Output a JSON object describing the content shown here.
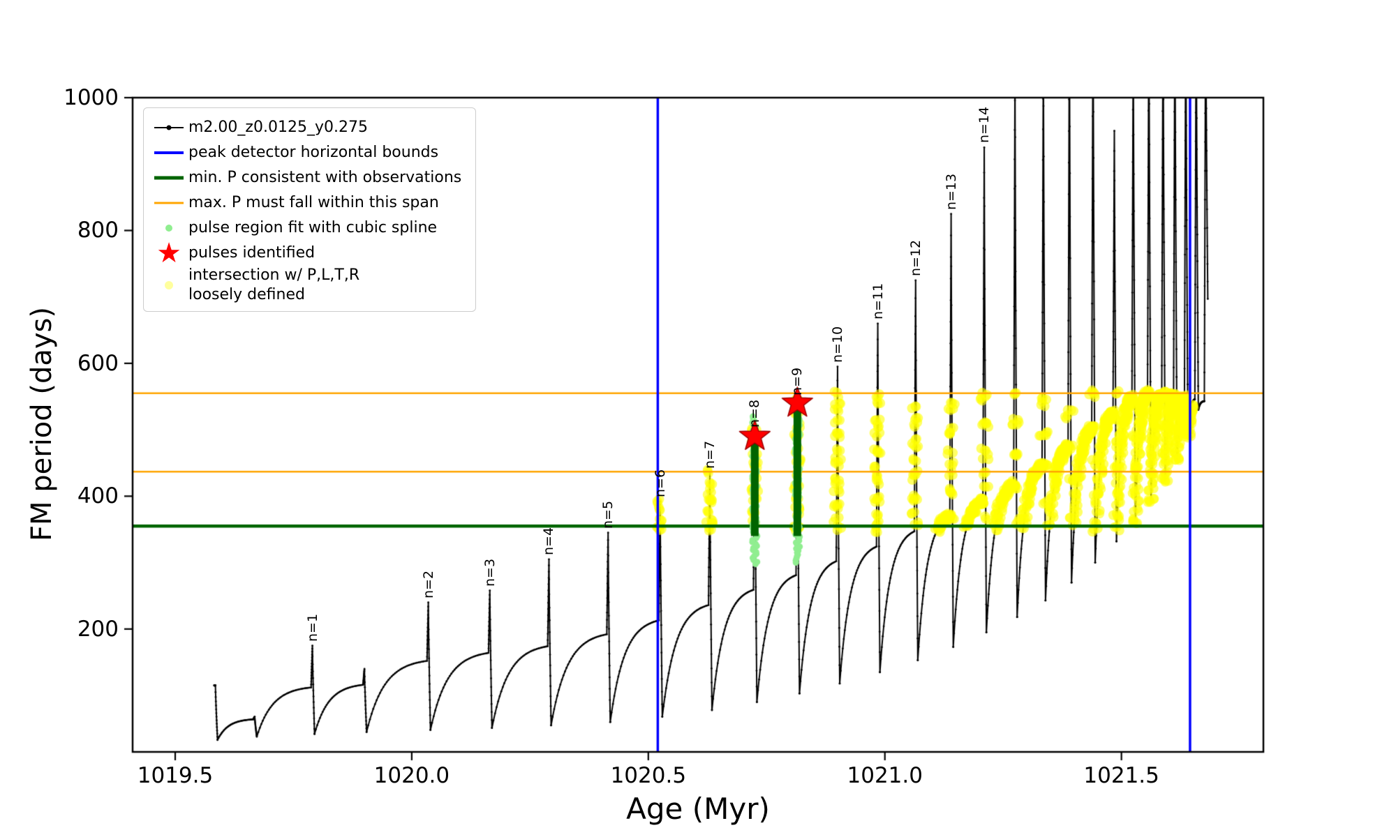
{
  "chart_data": {
    "type": "line",
    "title": "",
    "xlabel": "Age (Myr)",
    "ylabel": "FM period (days)",
    "xlim": [
      1019.41,
      1021.8
    ],
    "ylim": [
      15,
      1000
    ],
    "grid": false,
    "legend_position": "upper left",
    "xticks": [
      {
        "v": 1019.5,
        "label": "1019.5"
      },
      {
        "v": 1020.0,
        "label": "1020.0"
      },
      {
        "v": 1020.5,
        "label": "1020.5"
      },
      {
        "v": 1021.0,
        "label": "1021.0"
      },
      {
        "v": 1021.5,
        "label": "1021.5"
      }
    ],
    "yticks": [
      {
        "v": 200,
        "label": "200"
      },
      {
        "v": 400,
        "label": "400"
      },
      {
        "v": 600,
        "label": "600"
      },
      {
        "v": 800,
        "label": "800"
      },
      {
        "v": 1000,
        "label": "1000"
      }
    ],
    "series_name": "m2.00_z0.0125_y0.275",
    "peak_detector_bounds_x": [
      1020.52,
      1021.645
    ],
    "min_P_consistent_y": 355,
    "max_P_span_y": [
      437,
      555
    ],
    "yellow_band_y": [
      348,
      557
    ],
    "pulses": [
      {
        "label": null,
        "age": 1019.585,
        "peak": 115,
        "dip": 33,
        "hump": null
      },
      {
        "label": null,
        "age": 1019.668,
        "peak": 68,
        "dip": 38,
        "hump": 64
      },
      {
        "label": "n=1",
        "age": 1019.79,
        "peak": 175,
        "dip": 42,
        "hump": 112
      },
      {
        "label": null,
        "age": 1019.9,
        "peak": 140,
        "dip": 45,
        "hump": 116
      },
      {
        "label": "n=2",
        "age": 1020.035,
        "peak": 240,
        "dip": 48,
        "hump": 152
      },
      {
        "label": "n=3",
        "age": 1020.165,
        "peak": 258,
        "dip": 51,
        "hump": 164
      },
      {
        "label": "n=4",
        "age": 1020.29,
        "peak": 305,
        "dip": 55,
        "hump": 174
      },
      {
        "label": "n=5",
        "age": 1020.415,
        "peak": 345,
        "dip": 60,
        "hump": 192
      },
      {
        "label": "n=6",
        "age": 1020.525,
        "peak": 392,
        "dip": 68,
        "hump": 213
      },
      {
        "label": "n=7",
        "age": 1020.63,
        "peak": 435,
        "dip": 78,
        "hump": 236
      },
      {
        "label": "n=8",
        "age": 1020.725,
        "peak": 497,
        "dip": 90,
        "hump": 259
      },
      {
        "label": "n=9",
        "age": 1020.815,
        "peak": 545,
        "dip": 103,
        "hump": 281
      },
      {
        "label": "n=10",
        "age": 1020.9,
        "peak": 595,
        "dip": 118,
        "hump": 302
      },
      {
        "label": "n=11",
        "age": 1020.985,
        "peak": 660,
        "dip": 135,
        "hump": 324
      },
      {
        "label": "n=12",
        "age": 1021.065,
        "peak": 725,
        "dip": 153,
        "hump": 347
      },
      {
        "label": "n=13",
        "age": 1021.14,
        "peak": 825,
        "dip": 173,
        "hump": 370
      },
      {
        "label": "n=14",
        "age": 1021.21,
        "peak": 925,
        "dip": 195,
        "hump": 394
      },
      {
        "label": null,
        "age": 1021.275,
        "peak": 1040,
        "dip": 218,
        "hump": 420
      },
      {
        "label": null,
        "age": 1021.335,
        "peak": 1090,
        "dip": 243,
        "hump": 447
      },
      {
        "label": null,
        "age": 1021.39,
        "peak": 1140,
        "dip": 270,
        "hump": 474
      },
      {
        "label": null,
        "age": 1021.44,
        "peak": 1160,
        "dip": 300,
        "hump": 502
      },
      {
        "label": null,
        "age": 1021.485,
        "peak": 950,
        "dip": 332,
        "hump": 527
      },
      {
        "label": null,
        "age": 1021.525,
        "peak": 1100,
        "dip": 362,
        "hump": 549
      },
      {
        "label": null,
        "age": 1021.558,
        "peak": 1150,
        "dip": 394,
        "hump": 556
      },
      {
        "label": null,
        "age": 1021.588,
        "peak": 1150,
        "dip": 426,
        "hump": 554
      },
      {
        "label": null,
        "age": 1021.613,
        "peak": 1150,
        "dip": 458,
        "hump": 551
      },
      {
        "label": null,
        "age": 1021.636,
        "peak": 1150,
        "dip": 492,
        "hump": 549
      },
      {
        "label": null,
        "age": 1021.658,
        "peak": 1150,
        "dip": 530,
        "hump": 546
      },
      {
        "label": null,
        "age": 1021.678,
        "peak": 1150,
        "dip": 697,
        "hump": 543
      }
    ],
    "pulse_fit_regions": [
      {
        "age": 1020.725,
        "y_min": 298,
        "y_max": 520,
        "core_min": 340,
        "core_max": 497
      },
      {
        "age": 1020.815,
        "y_min": 300,
        "y_max": 548,
        "core_min": 340,
        "core_max": 532
      }
    ],
    "pulses_identified": [
      {
        "age": 1020.725,
        "period": 490
      },
      {
        "age": 1020.815,
        "period": 540
      }
    ],
    "colors": {
      "curve": "#000000",
      "bounds_blue": "#0000ff",
      "min_green": "#006400",
      "span_orange": "#ffa500",
      "fit_lightgreen": "#90ee90",
      "pulse_red": "#ff0000",
      "intersection_yellow": "#ffff00"
    }
  },
  "legend": {
    "items": [
      {
        "label": "m2.00_z0.0125_y0.275",
        "icon": "line-marker",
        "icon_name": "black-line-marker-icon",
        "color": "#000000",
        "lw": 2
      },
      {
        "label": "peak detector horizontal bounds",
        "icon": "line",
        "icon_name": "blue-line-icon",
        "color": "#0000ff",
        "lw": 4
      },
      {
        "label": "min. P consistent with observations",
        "icon": "line",
        "icon_name": "green-line-icon",
        "color": "#006400",
        "lw": 5
      },
      {
        "label": "max. P must fall within this span",
        "icon": "line",
        "icon_name": "orange-line-icon",
        "color": "#ffa500",
        "lw": 3
      },
      {
        "label": "pulse region fit with cubic spline",
        "icon": "dot",
        "icon_name": "lightgreen-dot-icon",
        "color": "#90ee90",
        "size": 10
      },
      {
        "label": "pulses identified",
        "icon": "star",
        "icon_name": "red-star-icon",
        "color": "#ff0000"
      },
      {
        "label": "intersection w/ P,L,T,R\nloosely defined",
        "icon": "dot",
        "icon_name": "yellow-dot-icon",
        "color": "#ffff9e",
        "size": 12
      }
    ]
  }
}
